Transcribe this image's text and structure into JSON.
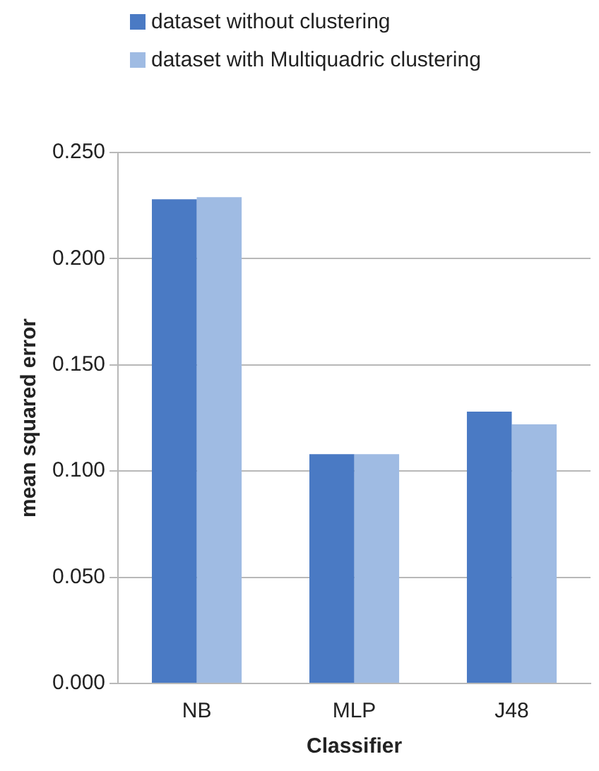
{
  "chart_data": {
    "type": "bar",
    "xlabel": "Classifier",
    "ylabel": "mean squared error",
    "categories": [
      "NB",
      "MLP",
      "J48"
    ],
    "series": [
      {
        "name": "dataset without clustering",
        "color": "#4a7ac4",
        "values": [
          0.228,
          0.108,
          0.128
        ]
      },
      {
        "name": "dataset with Multiquadric clustering",
        "color": "#9fbbe3",
        "values": [
          0.229,
          0.108,
          0.122
        ]
      }
    ],
    "ylim": [
      0,
      0.25
    ],
    "yticks": [
      {
        "value": 0,
        "label": "0.000"
      },
      {
        "value": 0.05,
        "label": "0.050"
      },
      {
        "value": 0.1,
        "label": "0.100"
      },
      {
        "value": 0.15,
        "label": "0.150"
      },
      {
        "value": 0.2,
        "label": "0.200"
      },
      {
        "value": 0.25,
        "label": "0.250"
      }
    ],
    "grid": "y",
    "legend": "top"
  }
}
